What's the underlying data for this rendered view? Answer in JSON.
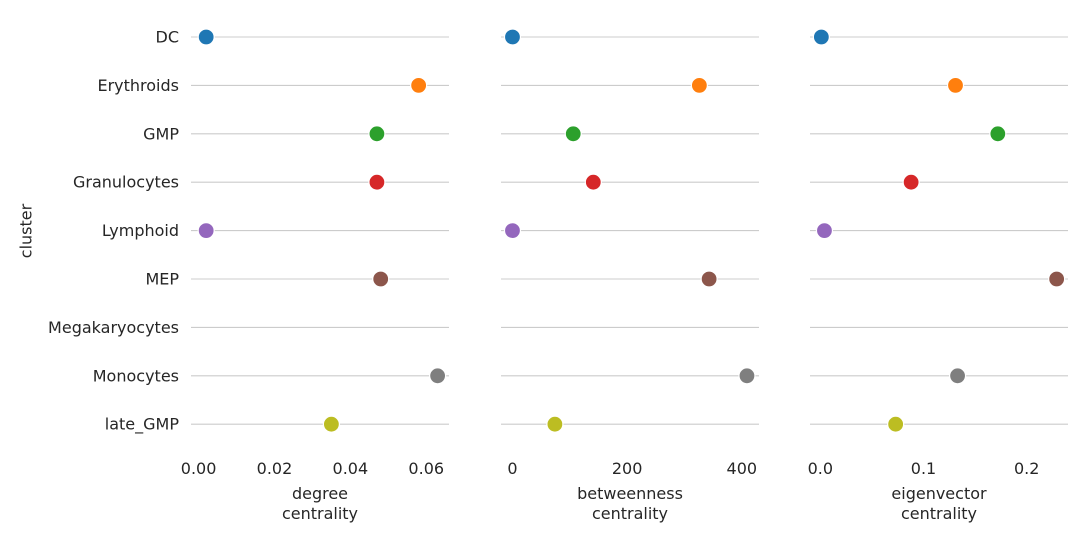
{
  "chart_data": {
    "type": "scatter",
    "ylabel": "cluster",
    "categories": [
      "DC",
      "Erythroids",
      "GMP",
      "Granulocytes",
      "Lymphoid",
      "MEP",
      "Megakaryocytes",
      "Monocytes",
      "late_GMP"
    ],
    "colors": [
      "#1f77b4",
      "#ff7f0e",
      "#2ca02c",
      "#d62728",
      "#9467bd",
      "#8c564b",
      null,
      "#7f7f7f",
      "#bcbd22"
    ],
    "grid": "horizontal",
    "panels": [
      {
        "xlabel": [
          "degree",
          "centrality"
        ],
        "xlim": [
          -0.002,
          0.066
        ],
        "xticks": [
          0.0,
          0.02,
          0.04,
          0.06
        ],
        "xtick_labels": [
          "0.00",
          "0.02",
          "0.04",
          "0.06"
        ],
        "values": [
          0.002,
          0.058,
          0.047,
          0.047,
          0.002,
          0.048,
          null,
          0.063,
          0.035
        ]
      },
      {
        "xlabel": [
          "betweenness",
          "centrality"
        ],
        "xlim": [
          -20,
          430
        ],
        "xticks": [
          0,
          200,
          400
        ],
        "xtick_labels": [
          "0",
          "200",
          "400"
        ],
        "values": [
          0,
          326,
          106,
          141,
          0,
          343,
          null,
          409,
          74
        ]
      },
      {
        "xlabel": [
          "eigenvector",
          "centrality"
        ],
        "xlim": [
          -0.01,
          0.24
        ],
        "xticks": [
          0.0,
          0.1,
          0.2
        ],
        "xtick_labels": [
          "0.0",
          "0.1",
          "0.2"
        ],
        "values": [
          0.001,
          0.131,
          0.172,
          0.088,
          0.004,
          0.229,
          null,
          0.133,
          0.073
        ]
      }
    ]
  }
}
